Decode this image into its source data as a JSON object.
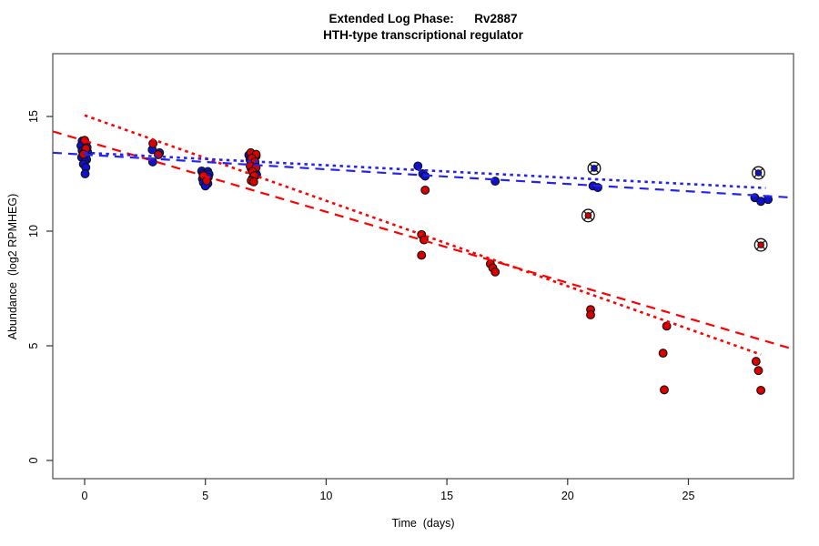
{
  "header": {
    "title_line1": "Extended Log Phase:      Rv2887",
    "title_line2": "HTH-type transcriptional regulator"
  },
  "axes": {
    "x_label": "Time  (days)",
    "y_label": "Abundance  (log2 RPMHEG)"
  },
  "colors": {
    "red_point": "#d90000",
    "blue_point": "#1010d0",
    "red_line": "#ff0000",
    "blue_line": "#2424ee",
    "axis": "#4d4d4d",
    "tick": "#333333"
  },
  "chart_data": {
    "type": "scatter",
    "title": "Extended Log Phase: Rv2887",
    "subtitle": "HTH-type transcriptional regulator",
    "xlabel": "Time  (days)",
    "ylabel": "Abundance  (log2 RPMHEG)",
    "xlim": [
      -1.32,
      29.35
    ],
    "ylim": [
      -0.79,
      17.74
    ],
    "x_ticks": [
      0,
      5,
      10,
      15,
      20,
      25
    ],
    "y_ticks": [
      0,
      5,
      10,
      15
    ],
    "grid": false,
    "legend": "none",
    "series": [
      {
        "name": "blue-points",
        "type": "points",
        "color": "#1010d0",
        "points": [
          [
            -0.1,
            13.93
          ],
          [
            0.05,
            13.82
          ],
          [
            -0.15,
            13.72
          ],
          [
            0.1,
            13.65
          ],
          [
            0.0,
            13.58
          ],
          [
            -0.1,
            13.5
          ],
          [
            0.12,
            13.45
          ],
          [
            -0.05,
            13.38
          ],
          [
            0.05,
            13.3
          ],
          [
            -0.12,
            13.22
          ],
          [
            0.08,
            13.12
          ],
          [
            0.0,
            13.02
          ],
          [
            -0.05,
            12.92
          ],
          [
            0.05,
            12.78
          ],
          [
            0.02,
            12.5
          ],
          [
            2.8,
            13.55
          ],
          [
            3.1,
            13.42
          ],
          [
            2.82,
            13.02
          ],
          [
            4.85,
            12.62
          ],
          [
            5.1,
            12.6
          ],
          [
            4.9,
            12.5
          ],
          [
            5.15,
            12.48
          ],
          [
            4.95,
            12.38
          ],
          [
            5.12,
            12.35
          ],
          [
            4.88,
            12.28
          ],
          [
            5.05,
            12.22
          ],
          [
            4.92,
            12.12
          ],
          [
            5.1,
            12.08
          ],
          [
            5.0,
            11.97
          ],
          [
            6.8,
            13.32
          ],
          [
            7.1,
            13.28
          ],
          [
            6.85,
            13.12
          ],
          [
            7.05,
            12.95
          ],
          [
            6.9,
            12.72
          ],
          [
            7.08,
            12.55
          ],
          [
            7.12,
            12.45
          ],
          [
            6.95,
            12.3
          ],
          [
            13.8,
            12.84
          ],
          [
            14.0,
            12.5
          ],
          [
            14.1,
            12.4
          ],
          [
            17.0,
            12.18
          ],
          [
            21.05,
            11.97
          ],
          [
            21.25,
            11.9
          ],
          [
            27.75,
            11.46
          ],
          [
            28.0,
            11.3
          ],
          [
            28.3,
            11.38
          ]
        ]
      },
      {
        "name": "red-points",
        "type": "points",
        "color": "#d90000",
        "points": [
          [
            0.0,
            13.96
          ],
          [
            0.05,
            13.6
          ],
          [
            -0.05,
            13.35
          ],
          [
            2.83,
            13.82
          ],
          [
            3.05,
            13.33
          ],
          [
            4.92,
            12.42
          ],
          [
            5.05,
            12.2
          ],
          [
            6.88,
            13.42
          ],
          [
            7.1,
            13.35
          ],
          [
            6.92,
            13.18
          ],
          [
            7.05,
            13.02
          ],
          [
            6.85,
            12.85
          ],
          [
            7.1,
            12.78
          ],
          [
            6.95,
            12.6
          ],
          [
            7.02,
            12.42
          ],
          [
            6.9,
            12.2
          ],
          [
            7.0,
            12.15
          ],
          [
            14.1,
            11.79
          ],
          [
            13.95,
            9.85
          ],
          [
            14.05,
            9.62
          ],
          [
            13.95,
            8.95
          ],
          [
            16.8,
            8.57
          ],
          [
            16.9,
            8.4
          ],
          [
            17.0,
            8.22
          ],
          [
            20.95,
            6.58
          ],
          [
            20.95,
            6.35
          ],
          [
            24.1,
            5.86
          ],
          [
            23.95,
            4.68
          ],
          [
            24.0,
            3.08
          ],
          [
            27.8,
            4.32
          ],
          [
            27.9,
            3.92
          ],
          [
            28.0,
            3.06
          ]
        ]
      },
      {
        "name": "blue-circled-outliers",
        "type": "circled-points",
        "color": "#1010d0",
        "points": [
          [
            21.1,
            12.74
          ],
          [
            27.9,
            12.54
          ]
        ]
      },
      {
        "name": "red-circled-outliers",
        "type": "circled-points",
        "color": "#cc0000",
        "points": [
          [
            20.85,
            10.68
          ],
          [
            28.0,
            9.4
          ]
        ]
      }
    ],
    "trend_lines": [
      {
        "name": "red-dashed-fit",
        "color": "#ff0000",
        "dash": "dashed",
        "from": [
          -1.32,
          14.35
        ],
        "to": [
          29.35,
          4.85
        ]
      },
      {
        "name": "red-dotted-fit",
        "color": "#ff0000",
        "dash": "dotted",
        "from": [
          0.0,
          15.05
        ],
        "to": [
          28.0,
          4.62
        ]
      },
      {
        "name": "blue-dashed-fit",
        "color": "#2424ee",
        "dash": "dashed",
        "from": [
          -1.32,
          13.42
        ],
        "to": [
          29.35,
          11.46
        ]
      },
      {
        "name": "blue-dotted-fit",
        "color": "#2424ee",
        "dash": "dotted",
        "from": [
          0.0,
          13.42
        ],
        "to": [
          28.2,
          11.88
        ]
      }
    ]
  }
}
